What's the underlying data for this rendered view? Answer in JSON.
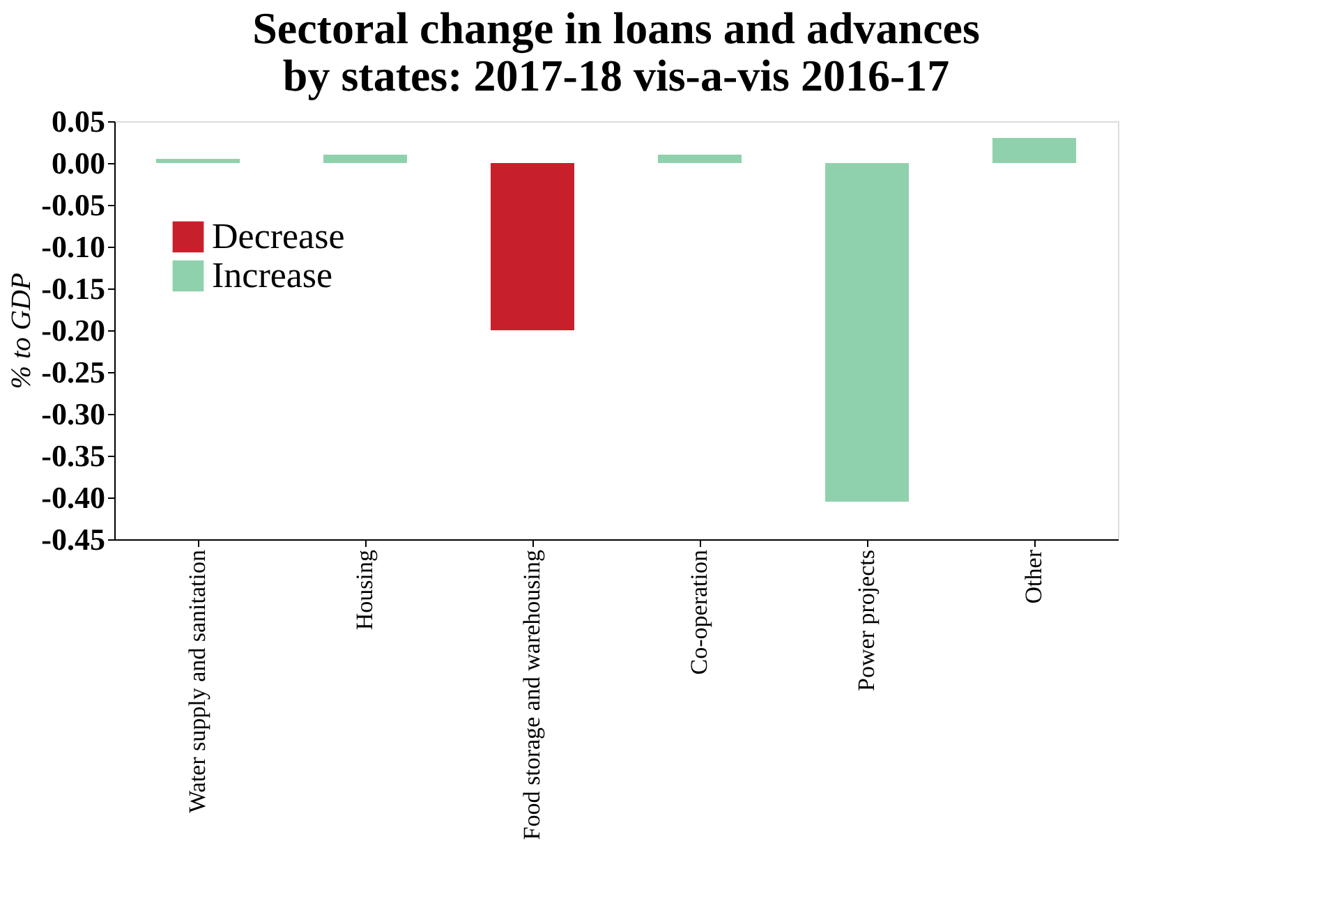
{
  "chart_data": {
    "type": "bar",
    "title": [
      "Sectoral change in loans and advances",
      "by states: 2017-18 vis-a-vis 2016-17"
    ],
    "ylabel": "% to GDP",
    "categories": [
      "Water supply and sanitation",
      "Housing",
      "Food storage and warehousing",
      "Co-operation",
      "Power projects",
      "Other"
    ],
    "series": [
      {
        "name": "Decrease",
        "color": "#c8202a",
        "values": [
          null,
          null,
          -0.2,
          null,
          null,
          null
        ]
      },
      {
        "name": "Increase",
        "color": "#8fd1ad",
        "values": [
          0.005,
          0.01,
          null,
          0.01,
          -0.405,
          0.03
        ]
      }
    ],
    "ylim": [
      -0.45,
      0.05
    ],
    "yticks": [
      {
        "value": 0.05,
        "label": "0.05"
      },
      {
        "value": 0,
        "label": "0.00"
      },
      {
        "value": -0.05,
        "label": "-0.05"
      },
      {
        "value": -0.1,
        "label": "-0.10"
      },
      {
        "value": -0.15,
        "label": "-0.15"
      },
      {
        "value": -0.2,
        "label": "-0.20"
      },
      {
        "value": -0.25,
        "label": "-0.25"
      },
      {
        "value": -0.3,
        "label": "-0.30"
      },
      {
        "value": -0.35,
        "label": "-0.35"
      },
      {
        "value": -0.4,
        "label": "-0.40"
      },
      {
        "value": -0.45,
        "label": "-0.45"
      }
    ],
    "legend": "top left"
  }
}
